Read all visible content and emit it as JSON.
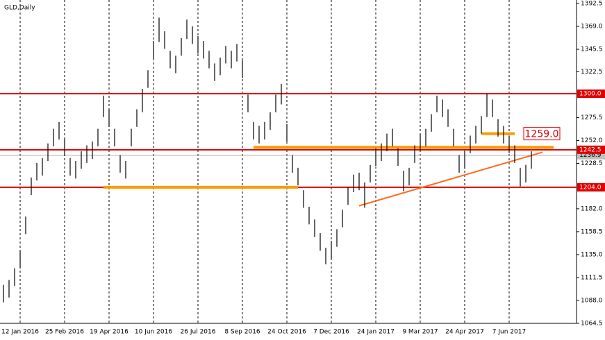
{
  "chart_data": {
    "type": "hilo",
    "title": "GLD,Daily",
    "categories": [
      null,
      null,
      null,
      "12 Jan 2016",
      null,
      null,
      null,
      null,
      null,
      null,
      null,
      "25 Feb 2016",
      null,
      null,
      null,
      null,
      null,
      null,
      null,
      "19 Apr 2016",
      null,
      null,
      null,
      null,
      null,
      null,
      null,
      "10 Jun 2016",
      null,
      null,
      null,
      null,
      null,
      null,
      null,
      "26 Jul 2016",
      null,
      null,
      null,
      null,
      null,
      null,
      null,
      "8 Sep 2016",
      null,
      null,
      null,
      null,
      null,
      null,
      null,
      "24 Oct 2016",
      null,
      null,
      null,
      null,
      null,
      null,
      null,
      "7 Dec 2016",
      null,
      null,
      null,
      null,
      null,
      null,
      null,
      "24 Jan 2017",
      null,
      null,
      null,
      null,
      null,
      null,
      null,
      "9 Mar 2017",
      null,
      null,
      null,
      null,
      null,
      null,
      null,
      "24 Apr 2017",
      null,
      null,
      null,
      null,
      null,
      null,
      null,
      "7 Jun 2017",
      null,
      null,
      null,
      null
    ],
    "high": [
      1104,
      1109,
      1121,
      1139,
      1174,
      1214,
      1229,
      1234,
      1249,
      1264,
      1271,
      1254,
      1234,
      1231,
      1241,
      1247,
      1251,
      1264,
      1298,
      1284,
      1264,
      1237,
      1231,
      1264,
      1284,
      1305,
      1324,
      1354,
      1378,
      1364,
      1344,
      1339,
      1357,
      1376,
      1369,
      1359,
      1354,
      1344,
      1331,
      1337,
      1349,
      1344,
      1351,
      1334,
      1299,
      1271,
      1267,
      1271,
      1281,
      1299,
      1310,
      1269,
      1237,
      1224,
      1201,
      1184,
      1171,
      1157,
      1142,
      1149,
      1161,
      1181,
      1204,
      1217,
      1219,
      1209,
      1227,
      1244,
      1249,
      1259,
      1264,
      1244,
      1221,
      1224,
      1247,
      1259,
      1264,
      1279,
      1298,
      1294,
      1284,
      1264,
      1237,
      1241,
      1257,
      1267,
      1277,
      1300,
      1294,
      1274,
      1267,
      1257,
      1247,
      1224,
      1227,
      1241
    ],
    "low": [
      1086,
      1091,
      1103,
      1121,
      1156,
      1196,
      1211,
      1216,
      1231,
      1246,
      1253,
      1236,
      1216,
      1213,
      1223,
      1229,
      1233,
      1246,
      1276,
      1266,
      1246,
      1219,
      1213,
      1246,
      1266,
      1281,
      1306,
      1336,
      1353,
      1346,
      1326,
      1321,
      1339,
      1356,
      1351,
      1341,
      1336,
      1326,
      1313,
      1319,
      1331,
      1326,
      1333,
      1316,
      1281,
      1253,
      1249,
      1253,
      1263,
      1281,
      1289,
      1251,
      1219,
      1206,
      1183,
      1166,
      1153,
      1139,
      1125,
      1131,
      1143,
      1163,
      1186,
      1199,
      1201,
      1183,
      1209,
      1226,
      1231,
      1241,
      1246,
      1226,
      1200,
      1206,
      1229,
      1241,
      1246,
      1261,
      1281,
      1276,
      1266,
      1246,
      1219,
      1223,
      1239,
      1249,
      1259,
      1276,
      1276,
      1256,
      1249,
      1239,
      1229,
      1205,
      1209,
      1223
    ],
    "color": "#000000",
    "ylim": [
      1064.5,
      1392.5
    ],
    "yticks": [
      {
        "value": 1064.5,
        "label": "1064.5"
      },
      {
        "value": 1088,
        "label": "1088.0"
      },
      {
        "value": 1111.5,
        "label": "1111.5"
      },
      {
        "value": 1135,
        "label": "1135.0"
      },
      {
        "value": 1158.5,
        "label": "1158.5"
      },
      {
        "value": 1182,
        "label": "1182.0"
      },
      {
        "value": 1228.5,
        "label": "1228.5"
      },
      {
        "value": 1252,
        "label": "1252.0"
      },
      {
        "value": 1275.5,
        "label": "1275.5"
      },
      {
        "value": 1322.5,
        "label": "1322.5"
      },
      {
        "value": 1345.5,
        "label": "1345.5"
      },
      {
        "value": 1369,
        "label": "1369.0"
      },
      {
        "value": 1392.5,
        "label": "1392.5"
      }
    ],
    "grid": true,
    "red_lines": [
      {
        "value": 1300,
        "label": "1300.0"
      },
      {
        "value": 1242.5,
        "label": "1242.5"
      },
      {
        "value": 1204,
        "label": "1204.0"
      }
    ],
    "red_color": "#e00000",
    "orange_segments": [
      {
        "value": 1204,
        "start": 18,
        "end": 53
      },
      {
        "value": 1245,
        "start": 45,
        "end": 99
      },
      {
        "value": 1259,
        "start": 86,
        "end": 92
      }
    ],
    "orange_color": "#ff9900",
    "trend_line": {
      "start": [
        64,
        1185
      ],
      "end": [
        97,
        1240
      ],
      "color": "#ff6a1a"
    },
    "annotation": {
      "value": 1259,
      "label": "1259.0"
    },
    "last_price": {
      "value": 1236.9,
      "label": "1236.9"
    }
  }
}
